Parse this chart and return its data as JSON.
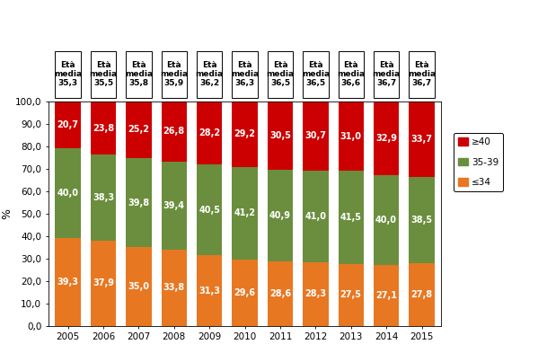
{
  "years": [
    "2005",
    "2006",
    "2007",
    "2008",
    "2009",
    "2010",
    "2011",
    "2012",
    "2013",
    "2014",
    "2015"
  ],
  "eta_media": [
    "35,3",
    "35,5",
    "35,8",
    "35,9",
    "36,2",
    "36,3",
    "36,5",
    "36,5",
    "36,6",
    "36,7",
    "36,7"
  ],
  "le34": [
    39.3,
    37.9,
    35.0,
    33.8,
    31.3,
    29.6,
    28.6,
    28.3,
    27.5,
    27.1,
    27.8
  ],
  "age35_39": [
    40.0,
    38.3,
    39.8,
    39.4,
    40.5,
    41.2,
    40.9,
    41.0,
    41.5,
    40.0,
    38.5
  ],
  "ge40": [
    20.7,
    23.8,
    25.2,
    26.8,
    28.2,
    29.2,
    30.5,
    30.7,
    31.0,
    32.9,
    33.7
  ],
  "color_le34": "#E87722",
  "color_35_39": "#6B8E3E",
  "color_ge40": "#CC0000",
  "ylabel": "%",
  "ylim": [
    0,
    100
  ],
  "yticks": [
    0.0,
    10.0,
    20.0,
    30.0,
    40.0,
    50.0,
    60.0,
    70.0,
    80.0,
    90.0,
    100.0
  ],
  "ytick_labels": [
    "0,0",
    "10,0",
    "20,0",
    "30,0",
    "40,0",
    "50,0",
    "60,0",
    "70,0",
    "80,0",
    "90,0",
    "100,0"
  ],
  "legend_ge40": "≥40",
  "legend_35_39": "35-39",
  "legend_le34": "≤34",
  "bar_width": 0.72,
  "bg_color": "#FFFFFF",
  "annotation_fontsize": 7.0,
  "header_fontsize": 6.5,
  "tick_fontsize": 7.5,
  "legend_fontsize": 7.5
}
